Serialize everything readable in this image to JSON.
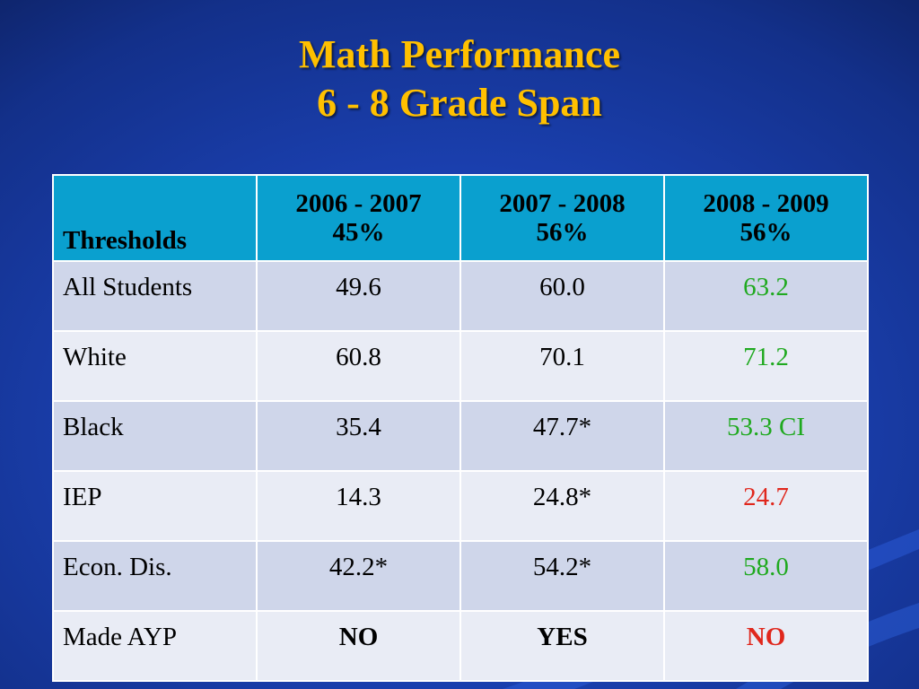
{
  "title": {
    "line1": "Math Performance",
    "line2": "6 - 8 Grade Span"
  },
  "colors": {
    "title": "#ffc000",
    "header_bg": "#0aa0cf",
    "row_odd": "#cfd6ea",
    "row_even": "#e9ecf5",
    "green": "#1fa91f",
    "red": "#e0271c"
  },
  "table": {
    "header": {
      "first": "Thresholds",
      "columns": [
        {
          "year": "2006 - 2007",
          "threshold": "45%"
        },
        {
          "year": "2007 - 2008",
          "threshold": "56%"
        },
        {
          "year": "2008 - 2009",
          "threshold": "56%"
        }
      ]
    },
    "rows": [
      {
        "label": "All Students",
        "v1": "49.6",
        "v2": "60.0",
        "v3": "63.2"
      },
      {
        "label": "White",
        "v1": "60.8",
        "v2": "70.1",
        "v3": "71.2"
      },
      {
        "label": "Black",
        "v1": "35.4",
        "v2": "47.7*",
        "v3": "53.3 CI"
      },
      {
        "label": "IEP",
        "v1": "14.3",
        "v2": "24.8*",
        "v3": "24.7"
      },
      {
        "label": "Econ. Dis.",
        "v1": "42.2*",
        "v2": "54.2*",
        "v3": "58.0"
      },
      {
        "label": "Made AYP",
        "v1": "NO",
        "v2": "YES",
        "v3": "NO"
      }
    ]
  }
}
